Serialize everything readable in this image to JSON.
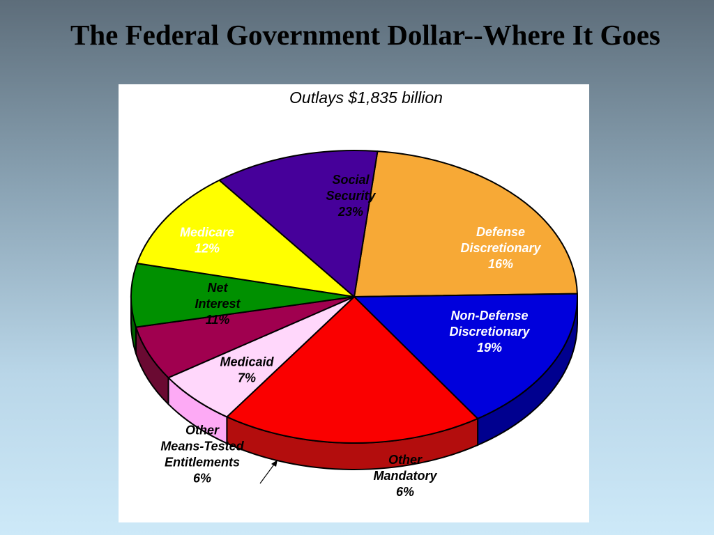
{
  "slide": {
    "title": "The Federal Government Dollar--Where It Goes"
  },
  "chart_data": {
    "type": "pie",
    "title": "Outlays $1,835 billion",
    "slices": [
      {
        "label_lines": [
          "Social",
          "Security",
          "23%"
        ],
        "value": 23,
        "color": "#f7a936",
        "side_color": "#c98410",
        "label_color": "#000000"
      },
      {
        "label_lines": [
          "Defense",
          "Discretionary",
          "16%"
        ],
        "value": 16,
        "color": "#0000dc",
        "side_color": "#00008f",
        "label_color": "#ffffff"
      },
      {
        "label_lines": [
          "Non-Defense",
          "Discretionary",
          "19%"
        ],
        "value": 19,
        "color": "#fa0000",
        "side_color": "#b30d0d",
        "label_color": "#ffffff"
      },
      {
        "label_lines": [
          "Other",
          "Mandatory",
          "6%"
        ],
        "value": 6,
        "color": "#ffd7fb",
        "side_color": "#fdaaf5",
        "label_color": "#000000"
      },
      {
        "label_lines": [
          "Other",
          "Means-Tested",
          "Entitlements",
          "6%"
        ],
        "value": 6,
        "color": "#a0004f",
        "side_color": "#6a0a32",
        "label_color": "#000000"
      },
      {
        "label_lines": [
          "Medicaid",
          "7%"
        ],
        "value": 7,
        "color": "#009000",
        "side_color": "#006200",
        "label_color": "#000000"
      },
      {
        "label_lines": [
          "Net",
          "Interest",
          "11%"
        ],
        "value": 11,
        "color": "#ffff00",
        "side_color": "#f5c431",
        "label_color": "#000000"
      },
      {
        "label_lines": [
          "Medicare",
          "12%"
        ],
        "value": 12,
        "color": "#46009a",
        "side_color": "#2a005e",
        "label_color": "#ffffff"
      }
    ]
  }
}
